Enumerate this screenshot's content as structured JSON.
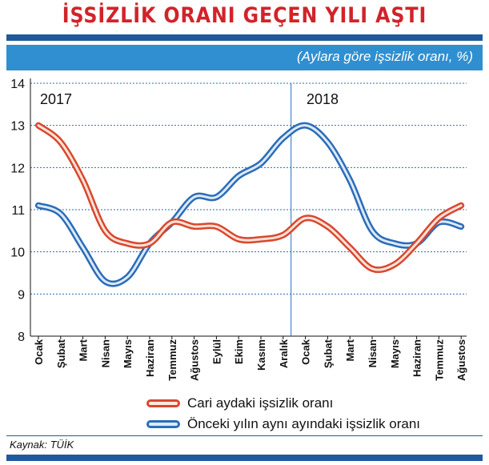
{
  "title": "İŞSİZLİK ORANI GEÇEN YILI AŞTI",
  "subtitle": "(Aylara göre işsizlik oranı, %)",
  "source": "Kaynak: TÜİK",
  "colors": {
    "red": "#d9472f",
    "blue": "#2b6cb8",
    "grid": "#2b6cb8",
    "accent": "#d2232a",
    "bar": "#2f8fd0"
  },
  "chart_data": {
    "type": "line",
    "title": "İŞSİZLİK ORANI GEÇEN YILI AŞTI",
    "subtitle": "(Aylara göre işsizlik oranı, %)",
    "ylim": [
      8,
      14
    ],
    "yticks": [
      "8",
      "9",
      "10",
      "11",
      "12",
      "13",
      "14"
    ],
    "grid": true,
    "legend_position": "bottom",
    "year_labels": [
      "2017",
      "2018"
    ],
    "categories": [
      "Ocak",
      "Şubat",
      "Mart",
      "Nisan",
      "Mayıs",
      "Haziran",
      "Temmuz",
      "Ağustos",
      "Eylül",
      "Ekim",
      "Kasım",
      "Aralık",
      "Ocak",
      "Şubat",
      "Mart",
      "Nisan",
      "Mayıs",
      "Haziran",
      "Temmuz",
      "Ağustos"
    ],
    "series": [
      {
        "name": "Cari aydaki işsizlik oranı",
        "color": "#d9472f",
        "values": [
          13.0,
          12.6,
          11.7,
          10.5,
          10.2,
          10.2,
          10.7,
          10.6,
          10.6,
          10.3,
          10.3,
          10.4,
          10.8,
          10.6,
          10.1,
          9.6,
          9.7,
          10.2,
          10.8,
          11.1
        ]
      },
      {
        "name": "Önceki yılın aynı ayındaki işsizlik oranı",
        "color": "#2b6cb8",
        "values": [
          11.1,
          10.9,
          10.1,
          9.3,
          9.4,
          10.2,
          10.7,
          11.3,
          11.3,
          11.8,
          12.1,
          12.7,
          13.0,
          12.6,
          11.7,
          10.5,
          10.2,
          10.2,
          10.7,
          10.6
        ]
      }
    ]
  }
}
